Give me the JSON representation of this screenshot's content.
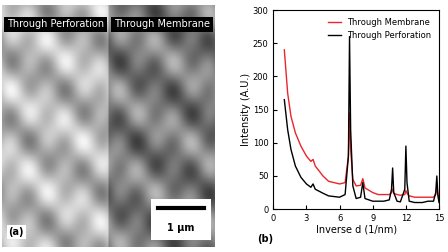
{
  "chart_data": [
    {
      "type": "image",
      "labels": [
        "Through Perforation",
        "Through Membrane"
      ],
      "scale_bar": "1 µm",
      "annotations": [
        "(a)"
      ]
    },
    {
      "type": "line",
      "x_label": "Inverse d (1/nm)",
      "y_label": "Intensity (A.U.)",
      "annotations": [
        "(b)"
      ],
      "x": [
        1,
        1.3,
        1.6,
        2,
        2.5,
        3,
        3.4,
        3.6,
        3.8,
        4.5,
        5,
        5.5,
        6,
        6.5,
        6.8,
        6.9,
        7.0,
        7.2,
        7.5,
        7.9,
        8.1,
        8.3,
        9,
        9.5,
        10,
        10.5,
        10.7,
        10.8,
        10.9,
        11.2,
        11.5,
        11.9,
        12.0,
        12.1,
        12.3,
        12.8,
        13.5,
        14,
        14.5,
        14.7,
        14.8,
        14.9,
        15
      ],
      "series": [
        {
          "name": "Through Membrane",
          "color": "#e8262b",
          "values": [
            240,
            175,
            140,
            115,
            95,
            80,
            72,
            75,
            65,
            50,
            42,
            40,
            38,
            40,
            80,
            145,
            90,
            45,
            35,
            36,
            46,
            32,
            25,
            22,
            22,
            22,
            25,
            30,
            24,
            22,
            21,
            22,
            28,
            24,
            20,
            18,
            18,
            18,
            18,
            22,
            32,
            22,
            18
          ]
        },
        {
          "name": "Through Perforation",
          "color": "#000000",
          "values": [
            165,
            120,
            90,
            65,
            48,
            38,
            33,
            38,
            30,
            24,
            20,
            19,
            18,
            22,
            80,
            260,
            120,
            35,
            16,
            18,
            40,
            16,
            12,
            12,
            12,
            14,
            30,
            62,
            25,
            12,
            11,
            30,
            95,
            40,
            12,
            10,
            10,
            12,
            12,
            25,
            50,
            20,
            10
          ]
        }
      ],
      "xlim": [
        0,
        15
      ],
      "xticks": [
        0,
        3,
        6,
        9,
        12,
        15
      ],
      "ylim": [
        0,
        300
      ],
      "yticks": [
        0,
        50,
        100,
        150,
        200,
        250,
        300
      ],
      "legend": "upper right",
      "grid": false
    }
  ]
}
